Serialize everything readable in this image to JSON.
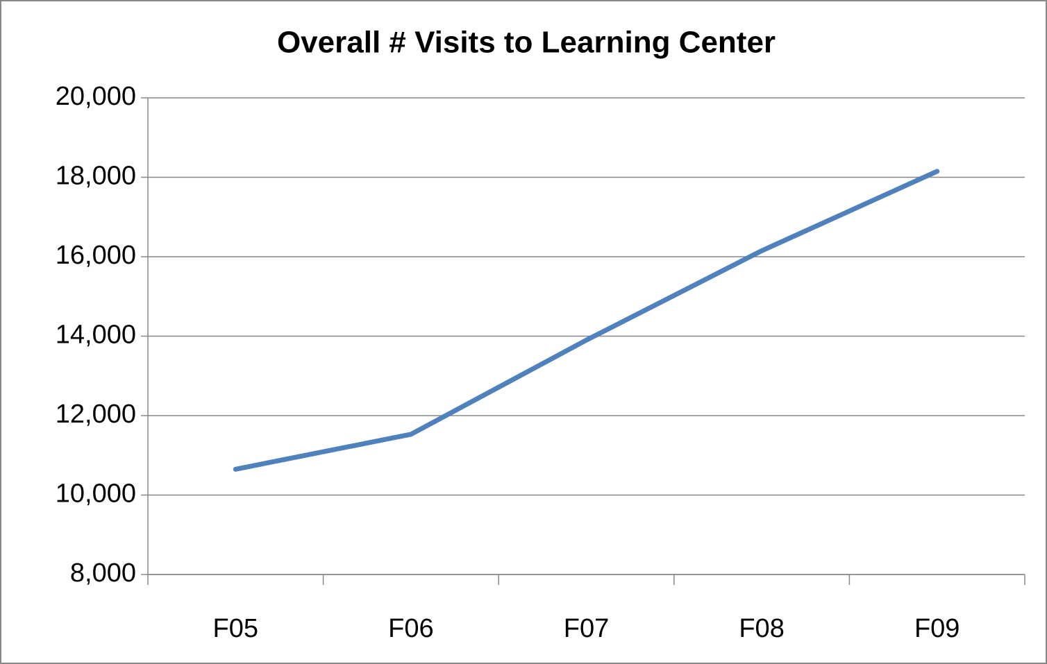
{
  "chart_data": {
    "type": "line",
    "title": "Overall # Visits to Learning Center",
    "categories": [
      "F05",
      "F06",
      "F07",
      "F08",
      "F09"
    ],
    "values": [
      10650,
      11530,
      13900,
      16150,
      18150
    ],
    "color": "#4f81bd",
    "ylim": [
      8000,
      20000
    ],
    "yticks": [
      {
        "value": 8000,
        "label": "8,000"
      },
      {
        "value": 10000,
        "label": "10,000"
      },
      {
        "value": 12000,
        "label": "12,000"
      },
      {
        "value": 14000,
        "label": "14,000"
      },
      {
        "value": 16000,
        "label": "16,000"
      },
      {
        "value": 18000,
        "label": "18,000"
      },
      {
        "value": 20000,
        "label": "20,000"
      }
    ],
    "grid": true
  }
}
